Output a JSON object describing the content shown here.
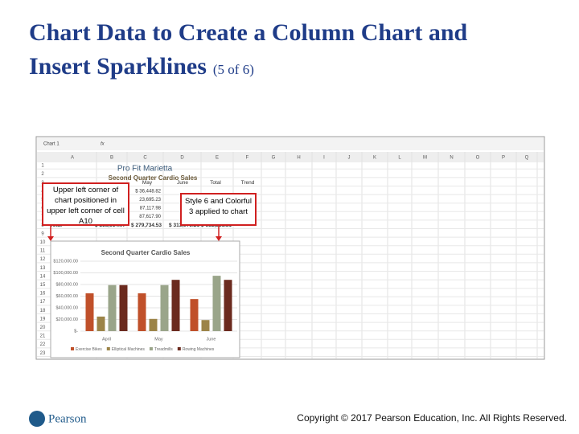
{
  "slide": {
    "title_line1": "Chart Data to Create a Column Chart and",
    "title_line2": "Insert Sparklines",
    "title_suffix": "(5 of 6)",
    "copyright": "Copyright © 2017 Pearson Education, Inc. All Rights Reserved.",
    "brand": "Pearson"
  },
  "sheet": {
    "name_box": "Chart 1",
    "fx": "fx",
    "columns": [
      "A",
      "B",
      "C",
      "D",
      "E",
      "F",
      "G",
      "H",
      "I",
      "J",
      "K",
      "L",
      "M",
      "N",
      "O",
      "P",
      "Q"
    ],
    "row_numbers": [
      "1",
      "2",
      "3",
      "4",
      "5",
      "6",
      "7",
      "8",
      "9",
      "10",
      "11",
      "12",
      "13",
      "14",
      "15",
      "16",
      "17",
      "18",
      "19",
      "20",
      "21",
      "22",
      "23"
    ],
    "heading": "Pro Fit Marietta",
    "subheading": "Second Quarter Cardio Sales",
    "headers": [
      "May",
      "June",
      "Total",
      "Trend"
    ],
    "may_values": [
      "$ 36,448.82",
      "23,695.23",
      "87,117.98",
      "87,617.90"
    ],
    "total_label": "Total",
    "totals": [
      "$ 258,614.07",
      "$ 279,734.53",
      "$ 313,973.21",
      "$ 852,321.81"
    ]
  },
  "callouts": [
    "Upper left corner of chart positioned in upper left corner of cell A10",
    "Style 6 and Colorful 3 applied to chart"
  ],
  "chart_data": {
    "type": "bar",
    "title": "Second Quarter Cardio Sales",
    "categories": [
      "April",
      "May",
      "June"
    ],
    "series": [
      {
        "name": "Exercise Bikes",
        "color": "#c0502a",
        "values": [
          65000,
          65000,
          55000
        ]
      },
      {
        "name": "Elliptical Machines",
        "color": "#9c8448",
        "values": [
          25000,
          21000,
          19000
        ]
      },
      {
        "name": "Treadmills",
        "color": "#9aa58a",
        "values": [
          79000,
          79000,
          95000
        ]
      },
      {
        "name": "Rowing Machines",
        "color": "#6b2a1e",
        "values": [
          79000,
          88000,
          88000
        ]
      }
    ],
    "ylim": [
      0,
      120000
    ],
    "yticks": [
      {
        "value": 0,
        "label": "$-"
      },
      {
        "value": 20000,
        "label": "$20,000.00"
      },
      {
        "value": 40000,
        "label": "$40,000.00"
      },
      {
        "value": 60000,
        "label": "$60,000.00"
      },
      {
        "value": 80000,
        "label": "$80,000.00"
      },
      {
        "value": 100000,
        "label": "$100,000.00"
      },
      {
        "value": 120000,
        "label": "$120,000.00"
      }
    ]
  }
}
